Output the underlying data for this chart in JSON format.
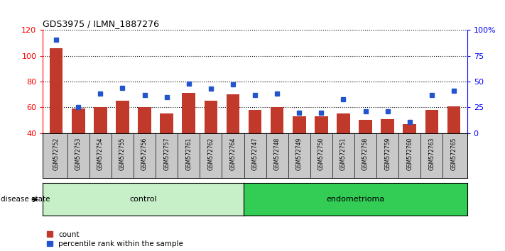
{
  "title": "GDS3975 / ILMN_1887276",
  "samples": [
    "GSM572752",
    "GSM572753",
    "GSM572754",
    "GSM572755",
    "GSM572756",
    "GSM572757",
    "GSM572761",
    "GSM572762",
    "GSM572764",
    "GSM572747",
    "GSM572748",
    "GSM572749",
    "GSM572750",
    "GSM572751",
    "GSM572758",
    "GSM572759",
    "GSM572760",
    "GSM572763",
    "GSM572765"
  ],
  "counts": [
    106,
    59,
    60,
    65,
    60,
    55,
    71,
    65,
    70,
    58,
    60,
    53,
    53,
    55,
    50,
    51,
    47,
    58,
    61
  ],
  "percentiles": [
    91,
    25,
    38,
    44,
    37,
    35,
    48,
    43,
    47,
    37,
    38,
    20,
    20,
    33,
    21,
    21,
    11,
    37,
    41
  ],
  "n_control": 9,
  "n_endo": 10,
  "ylim_left": [
    40,
    120
  ],
  "ylim_right": [
    0,
    100
  ],
  "yticks_left": [
    40,
    60,
    80,
    100,
    120
  ],
  "yticks_right": [
    0,
    25,
    50,
    75,
    100
  ],
  "ytick_labels_right": [
    "0",
    "25",
    "50",
    "75",
    "100%"
  ],
  "bar_color": "#c0392b",
  "percentile_color": "#2255cc",
  "grid_color": "#000000",
  "background_plot": "#ffffff",
  "background_xticklabel": "#c8c8c8",
  "control_color_light": "#c8f0c8",
  "control_color_dark": "#90ee90",
  "endometrioma_color": "#33cc55",
  "legend_count_label": "count",
  "legend_percentile_label": "percentile rank within the sample",
  "disease_state_label": "disease state",
  "control_label": "control",
  "endometrioma_label": "endometrioma"
}
